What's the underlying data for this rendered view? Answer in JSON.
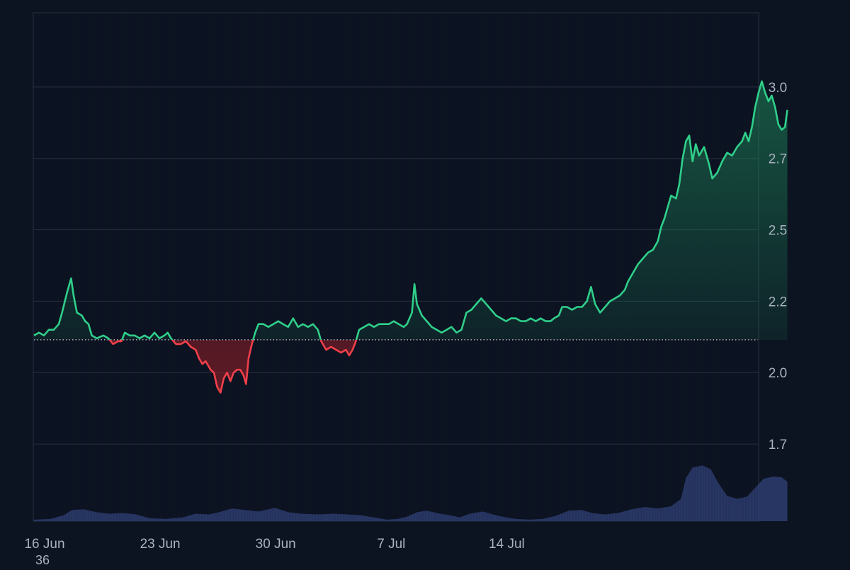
{
  "chart_data": {
    "type": "area",
    "title": "",
    "xlabel": "",
    "ylabel": "",
    "x_tick_labels": [
      "16 Jun",
      "23 Jun",
      "30 Jun",
      "7 Jul",
      "14 Jul"
    ],
    "y_tick_labels": [
      "1.7",
      "2.0",
      "2.2",
      "2.5",
      "2.7",
      "3.0"
    ],
    "footer_label": "36",
    "ylim": [
      1.48,
      3.26
    ],
    "baseline": 2.115,
    "grid": true,
    "x_range_days": [
      0,
      29.3
    ],
    "colors": {
      "background": "#0c1321",
      "up_line": "#2fcf8a",
      "down_line": "#f0404a",
      "up_fill": "#1f8a5c",
      "down_fill": "#8a1e28",
      "grid": "#2a3242",
      "axis_text": "#aab2c0",
      "volume": "#2e3d6e"
    },
    "price_series": [
      [
        0.0,
        2.13
      ],
      [
        0.3,
        2.14
      ],
      [
        0.6,
        2.13
      ],
      [
        0.9,
        2.15
      ],
      [
        1.2,
        2.15
      ],
      [
        1.5,
        2.17
      ],
      [
        1.7,
        2.21
      ],
      [
        2.0,
        2.28
      ],
      [
        2.25,
        2.33
      ],
      [
        2.4,
        2.27
      ],
      [
        2.6,
        2.21
      ],
      [
        2.9,
        2.2
      ],
      [
        3.1,
        2.18
      ],
      [
        3.3,
        2.17
      ],
      [
        3.5,
        2.13
      ],
      [
        3.8,
        2.12
      ],
      [
        4.2,
        2.13
      ],
      [
        4.5,
        2.12
      ],
      [
        4.8,
        2.1
      ],
      [
        5.1,
        2.11
      ],
      [
        5.3,
        2.11
      ],
      [
        5.5,
        2.14
      ],
      [
        5.8,
        2.13
      ],
      [
        6.1,
        2.13
      ],
      [
        6.4,
        2.12
      ],
      [
        6.7,
        2.13
      ],
      [
        7.0,
        2.12
      ],
      [
        7.3,
        2.14
      ],
      [
        7.6,
        2.12
      ],
      [
        7.9,
        2.13
      ],
      [
        8.1,
        2.14
      ],
      [
        8.3,
        2.12
      ],
      [
        8.6,
        2.1
      ],
      [
        8.9,
        2.1
      ],
      [
        9.2,
        2.11
      ],
      [
        9.5,
        2.09
      ],
      [
        9.8,
        2.08
      ],
      [
        10.0,
        2.05
      ],
      [
        10.2,
        2.03
      ],
      [
        10.4,
        2.04
      ],
      [
        10.7,
        2.01
      ],
      [
        10.9,
        2.0
      ],
      [
        11.1,
        1.95
      ],
      [
        11.3,
        1.93
      ],
      [
        11.5,
        1.98
      ],
      [
        11.7,
        2.0
      ],
      [
        11.9,
        1.97
      ],
      [
        12.1,
        2.0
      ],
      [
        12.3,
        2.01
      ],
      [
        12.5,
        2.01
      ],
      [
        12.7,
        1.99
      ],
      [
        12.85,
        1.96
      ],
      [
        13.0,
        2.05
      ],
      [
        13.2,
        2.1
      ],
      [
        13.4,
        2.14
      ],
      [
        13.6,
        2.17
      ],
      [
        13.9,
        2.17
      ],
      [
        14.2,
        2.16
      ],
      [
        14.5,
        2.17
      ],
      [
        14.8,
        2.18
      ],
      [
        15.1,
        2.17
      ],
      [
        15.4,
        2.16
      ],
      [
        15.7,
        2.19
      ],
      [
        16.0,
        2.16
      ],
      [
        16.3,
        2.17
      ],
      [
        16.6,
        2.16
      ],
      [
        16.9,
        2.17
      ],
      [
        17.2,
        2.15
      ],
      [
        17.4,
        2.11
      ],
      [
        17.7,
        2.08
      ],
      [
        18.0,
        2.09
      ],
      [
        18.3,
        2.08
      ],
      [
        18.6,
        2.07
      ],
      [
        18.9,
        2.08
      ],
      [
        19.1,
        2.06
      ],
      [
        19.3,
        2.08
      ],
      [
        19.5,
        2.11
      ],
      [
        19.7,
        2.15
      ],
      [
        20.0,
        2.16
      ],
      [
        20.3,
        2.17
      ],
      [
        20.6,
        2.16
      ],
      [
        20.9,
        2.17
      ],
      [
        21.2,
        2.17
      ],
      [
        21.5,
        2.17
      ],
      [
        21.8,
        2.18
      ],
      [
        22.1,
        2.17
      ],
      [
        22.4,
        2.16
      ],
      [
        22.6,
        2.17
      ],
      [
        22.9,
        2.21
      ],
      [
        23.05,
        2.31
      ],
      [
        23.2,
        2.24
      ],
      [
        23.5,
        2.2
      ],
      [
        23.8,
        2.18
      ],
      [
        24.1,
        2.16
      ],
      [
        24.4,
        2.15
      ],
      [
        24.7,
        2.14
      ],
      [
        25.0,
        2.15
      ],
      [
        25.3,
        2.16
      ],
      [
        25.6,
        2.14
      ],
      [
        25.9,
        2.15
      ],
      [
        26.2,
        2.21
      ],
      [
        26.5,
        2.22
      ],
      [
        26.8,
        2.24
      ],
      [
        27.1,
        2.26
      ],
      [
        27.4,
        2.24
      ],
      [
        27.7,
        2.22
      ],
      [
        28.0,
        2.2
      ],
      [
        28.3,
        2.19
      ],
      [
        28.6,
        2.18
      ],
      [
        28.9,
        2.19
      ],
      [
        29.2,
        2.19
      ],
      [
        29.5,
        2.18
      ],
      [
        29.8,
        2.18
      ],
      [
        30.1,
        2.19
      ],
      [
        30.4,
        2.18
      ],
      [
        30.7,
        2.19
      ],
      [
        31.0,
        2.18
      ],
      [
        31.3,
        2.18
      ],
      [
        31.5,
        2.19
      ],
      [
        31.8,
        2.2
      ],
      [
        32.0,
        2.23
      ],
      [
        32.3,
        2.23
      ],
      [
        32.6,
        2.22
      ],
      [
        32.9,
        2.23
      ],
      [
        33.2,
        2.23
      ],
      [
        33.5,
        2.25
      ],
      [
        33.75,
        2.3
      ],
      [
        34.0,
        2.24
      ],
      [
        34.3,
        2.21
      ],
      [
        34.6,
        2.23
      ],
      [
        34.9,
        2.25
      ],
      [
        35.2,
        2.26
      ],
      [
        35.5,
        2.27
      ],
      [
        35.8,
        2.29
      ],
      [
        36.0,
        2.32
      ],
      [
        36.3,
        2.35
      ],
      [
        36.6,
        2.38
      ],
      [
        36.9,
        2.4
      ],
      [
        37.2,
        2.42
      ],
      [
        37.5,
        2.43
      ],
      [
        37.8,
        2.46
      ],
      [
        38.0,
        2.51
      ],
      [
        38.2,
        2.54
      ],
      [
        38.4,
        2.58
      ],
      [
        38.6,
        2.62
      ],
      [
        38.9,
        2.61
      ],
      [
        39.1,
        2.66
      ],
      [
        39.3,
        2.75
      ],
      [
        39.5,
        2.81
      ],
      [
        39.7,
        2.83
      ],
      [
        39.9,
        2.74
      ],
      [
        40.1,
        2.8
      ],
      [
        40.3,
        2.76
      ],
      [
        40.6,
        2.79
      ],
      [
        40.9,
        2.73
      ],
      [
        41.1,
        2.68
      ],
      [
        41.4,
        2.7
      ],
      [
        41.7,
        2.74
      ],
      [
        42.0,
        2.77
      ],
      [
        42.3,
        2.76
      ],
      [
        42.6,
        2.79
      ],
      [
        42.9,
        2.81
      ],
      [
        43.1,
        2.84
      ],
      [
        43.3,
        2.81
      ],
      [
        43.5,
        2.86
      ],
      [
        43.7,
        2.93
      ],
      [
        43.9,
        2.98
      ],
      [
        44.1,
        3.02
      ],
      [
        44.3,
        2.98
      ],
      [
        44.5,
        2.95
      ],
      [
        44.7,
        2.97
      ],
      [
        44.9,
        2.93
      ],
      [
        45.1,
        2.87
      ],
      [
        45.3,
        2.85
      ],
      [
        45.5,
        2.86
      ],
      [
        45.65,
        2.92
      ]
    ],
    "volume_series": [
      [
        0.0,
        0.02
      ],
      [
        1.0,
        0.03
      ],
      [
        1.8,
        0.08
      ],
      [
        2.3,
        0.15
      ],
      [
        3.0,
        0.16
      ],
      [
        3.8,
        0.12
      ],
      [
        4.6,
        0.1
      ],
      [
        5.4,
        0.11
      ],
      [
        6.2,
        0.09
      ],
      [
        7.0,
        0.04
      ],
      [
        8.0,
        0.03
      ],
      [
        9.0,
        0.05
      ],
      [
        9.8,
        0.1
      ],
      [
        10.6,
        0.09
      ],
      [
        11.2,
        0.12
      ],
      [
        12.0,
        0.17
      ],
      [
        12.8,
        0.15
      ],
      [
        13.6,
        0.13
      ],
      [
        14.6,
        0.18
      ],
      [
        15.4,
        0.12
      ],
      [
        16.2,
        0.1
      ],
      [
        17.2,
        0.09
      ],
      [
        18.2,
        0.1
      ],
      [
        19.0,
        0.09
      ],
      [
        19.8,
        0.08
      ],
      [
        20.6,
        0.05
      ],
      [
        21.4,
        0.02
      ],
      [
        22.0,
        0.03
      ],
      [
        22.6,
        0.06
      ],
      [
        23.2,
        0.12
      ],
      [
        23.8,
        0.14
      ],
      [
        24.6,
        0.1
      ],
      [
        25.2,
        0.08
      ],
      [
        25.8,
        0.05
      ],
      [
        26.4,
        0.1
      ],
      [
        27.2,
        0.13
      ],
      [
        27.8,
        0.09
      ],
      [
        28.4,
        0.06
      ],
      [
        29.2,
        0.03
      ],
      [
        30.0,
        0.02
      ],
      [
        30.8,
        0.03
      ],
      [
        31.6,
        0.07
      ],
      [
        32.4,
        0.14
      ],
      [
        33.2,
        0.15
      ],
      [
        33.8,
        0.11
      ],
      [
        34.6,
        0.09
      ],
      [
        35.4,
        0.11
      ],
      [
        36.2,
        0.16
      ],
      [
        37.0,
        0.19
      ],
      [
        37.8,
        0.17
      ],
      [
        38.6,
        0.2
      ],
      [
        39.2,
        0.3
      ],
      [
        39.5,
        0.58
      ],
      [
        39.9,
        0.72
      ],
      [
        40.5,
        0.75
      ],
      [
        41.0,
        0.7
      ],
      [
        41.5,
        0.5
      ],
      [
        42.0,
        0.34
      ],
      [
        42.6,
        0.3
      ],
      [
        43.2,
        0.33
      ],
      [
        43.7,
        0.45
      ],
      [
        44.2,
        0.57
      ],
      [
        44.8,
        0.6
      ],
      [
        45.3,
        0.59
      ],
      [
        45.65,
        0.53
      ]
    ]
  }
}
